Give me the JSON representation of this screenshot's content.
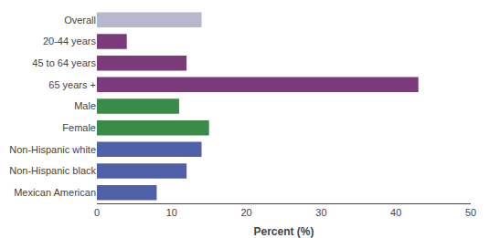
{
  "chart_data": {
    "type": "bar",
    "orientation": "horizontal",
    "categories": [
      "Overall",
      "20-44 years",
      "45 to 64 years",
      "65 years +",
      "Male",
      "Female",
      "Non-Hispanic white",
      "Non-Hispanic black",
      "Mexican American"
    ],
    "values": [
      14,
      4,
      12,
      43,
      11,
      15,
      14,
      12,
      8
    ],
    "colors": [
      "#b8b8cc",
      "#7b3b7b",
      "#7b3b7b",
      "#7b3b7b",
      "#3a8a4a",
      "#3a8a4a",
      "#5060a8",
      "#5060a8",
      "#5060a8"
    ],
    "xlabel": "Percent (%)",
    "xlim": [
      0,
      50
    ],
    "xticks": [
      0,
      10,
      20,
      30,
      40,
      50
    ],
    "grid": false
  }
}
